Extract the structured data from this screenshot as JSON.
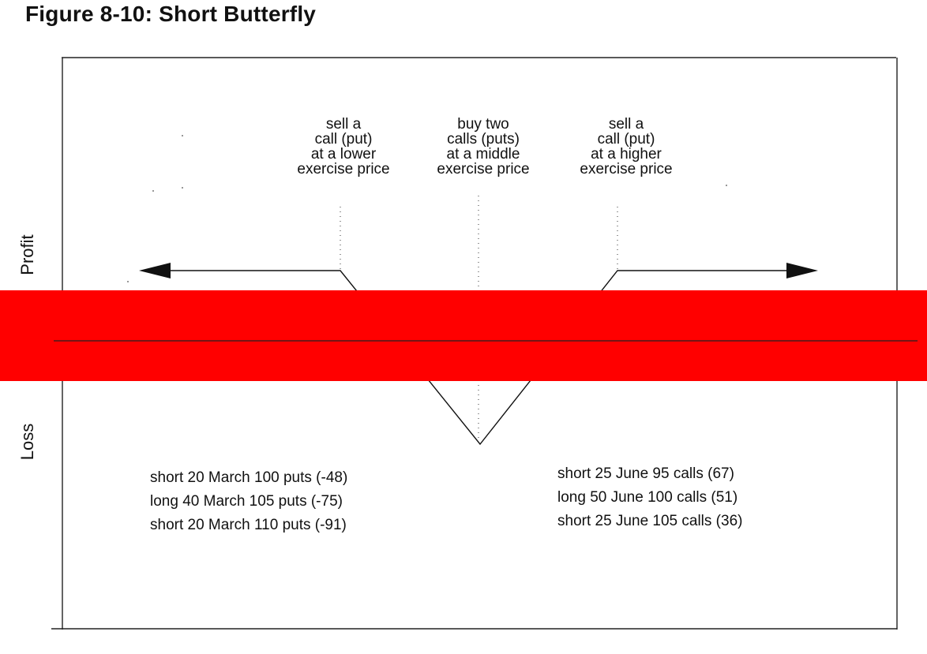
{
  "title": "Figure 8-10: Short Butterfly",
  "axis": {
    "profit": "Profit",
    "loss": "Loss"
  },
  "annotations": {
    "left": [
      "sell a",
      "call (put)",
      "at a lower",
      "exercise price"
    ],
    "middle": [
      "buy two",
      "calls (puts)",
      "at a middle",
      "exercise price"
    ],
    "right": [
      "sell a",
      "call (put)",
      "at a higher",
      "exercise price"
    ]
  },
  "puts_legs": [
    "short 20 March 100 puts (-48)",
    "long 40 March 105 puts (-75)",
    "short 20 March 110 puts (-91)"
  ],
  "calls_legs": [
    "short 25 June 95 calls (67)",
    "long 50 June 100 calls (51)",
    "short 25 June 105 calls (36)"
  ],
  "colors": {
    "band": "#ff0000",
    "ink": "#111111"
  }
}
